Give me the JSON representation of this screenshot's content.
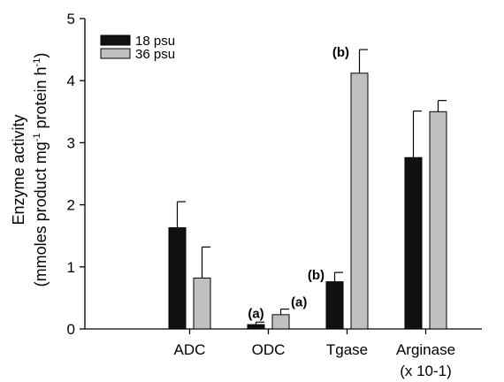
{
  "chart_data": {
    "type": "bar",
    "categories": [
      "ADC",
      "ODC",
      "Tgase",
      "Arginase"
    ],
    "category_sublabels": [
      "",
      "",
      "",
      "(x 10-1)"
    ],
    "series": [
      {
        "name": "18 psu",
        "color": "#111111",
        "values": [
          1.63,
          0.07,
          0.76,
          2.76
        ],
        "errors": [
          0.42,
          0.04,
          0.15,
          0.75
        ]
      },
      {
        "name": "36 psu",
        "color": "#c0c0c0",
        "values": [
          0.82,
          0.23,
          4.12,
          3.5
        ],
        "errors": [
          0.5,
          0.09,
          0.38,
          0.18
        ]
      }
    ],
    "ylabel": {
      "line1": "Enzyme activity",
      "line2_pre": "(mmoles product mg",
      "sup1": "-1",
      "line2_mid": " protein h",
      "sup2": "-1",
      "line2_post": ")"
    },
    "yticks": [
      "0",
      "1",
      "2",
      "3",
      "4",
      "5"
    ],
    "ylim": [
      0,
      5
    ],
    "grid": false,
    "legend_position": "top-left",
    "annotations": [
      {
        "category": "ODC",
        "series": "18 psu",
        "text": "(a)"
      },
      {
        "category": "ODC",
        "series": "36 psu",
        "text": "(a)"
      },
      {
        "category": "Tgase",
        "series": "18 psu",
        "text": "(b)"
      },
      {
        "category": "Tgase",
        "series": "36 psu",
        "text": "(b)"
      }
    ]
  }
}
